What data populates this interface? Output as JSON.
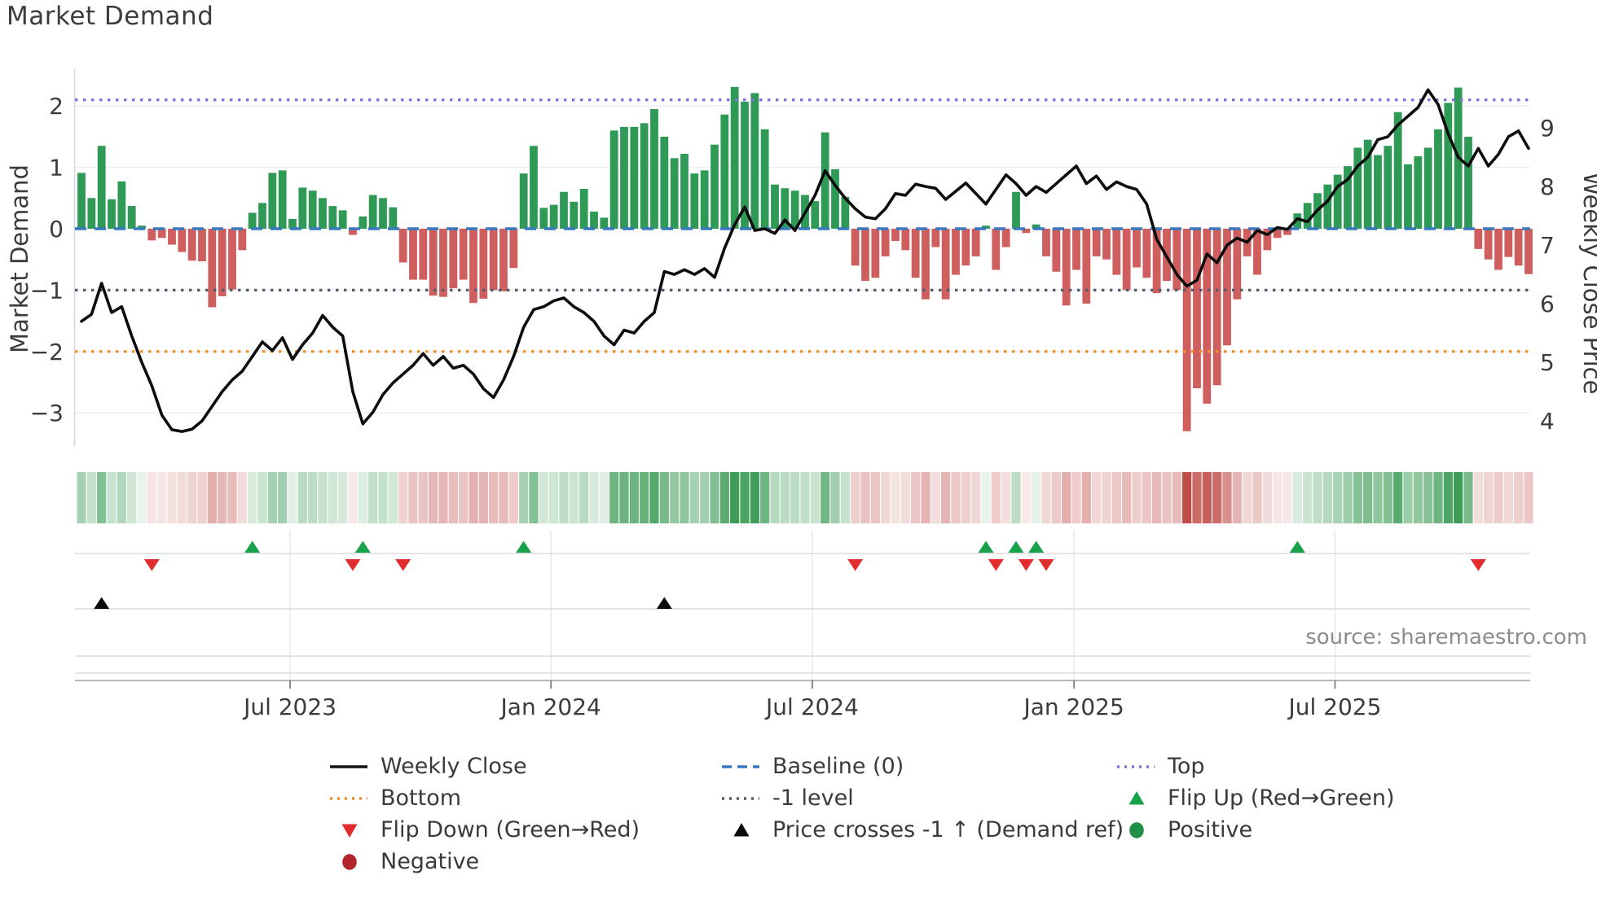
{
  "page": {
    "title": "Market Demand"
  },
  "source_note": "source: sharemaestro.com",
  "chart_data": {
    "type": "combo_bar_line",
    "title": "Market Demand",
    "x_axis": {
      "tick_labels": [
        "Jul 2023",
        "Jan 2024",
        "Jul 2024",
        "Jan 2025",
        "Jul 2025"
      ],
      "tick_week_indices": [
        20.76,
        46.72,
        72.73,
        98.77,
        124.74
      ],
      "weeks_total": 145
    },
    "left_axis": {
      "label": "Market Demand",
      "tick_values": [
        2,
        1,
        0,
        -1,
        -2,
        -3
      ],
      "tick_labels": [
        "2",
        "1",
        "0",
        "−1",
        "−2",
        "−3"
      ],
      "range": [
        -3.55,
        2.6
      ]
    },
    "right_axis": {
      "label": "Weekly Close Price",
      "tick_values": [
        9,
        8,
        7,
        6,
        5,
        4
      ],
      "tick_labels": [
        "9",
        "8",
        "7",
        "6",
        "5",
        "4"
      ],
      "range": [
        3.57,
        10.0
      ]
    },
    "reference_lines": [
      {
        "name": "Top",
        "value": 2.1,
        "color": "#7d74d9",
        "style": "dotted"
      },
      {
        "name": "Baseline (0)",
        "value": 0,
        "color": "#3679c0",
        "style": "dashed"
      },
      {
        "name": "-1 level",
        "value": -1,
        "color": "#565b68",
        "style": "dotted"
      },
      {
        "name": "Bottom",
        "value": -2,
        "color": "#f09127",
        "style": "dotted"
      }
    ],
    "series": {
      "demand_bars": {
        "name": "Market Demand",
        "positive_color": "#2e9a56",
        "negative_color": "#cf5f5f",
        "values": [
          0.91,
          0.5,
          1.35,
          0.48,
          0.77,
          0.37,
          0.05,
          -0.19,
          -0.15,
          -0.26,
          -0.38,
          -0.52,
          -0.53,
          -1.28,
          -1.1,
          -0.99,
          -0.35,
          0.26,
          0.42,
          0.91,
          0.95,
          0.16,
          0.67,
          0.62,
          0.5,
          0.37,
          0.3,
          -0.1,
          0.2,
          0.55,
          0.5,
          0.35,
          -0.55,
          -0.83,
          -0.83,
          -1.09,
          -1.11,
          -0.97,
          -0.83,
          -1.21,
          -1.14,
          -1.0,
          -1.02,
          -0.64,
          0.9,
          1.35,
          0.34,
          0.39,
          0.6,
          0.44,
          0.65,
          0.28,
          0.18,
          1.6,
          1.66,
          1.66,
          1.72,
          1.95,
          1.5,
          1.15,
          1.22,
          0.9,
          0.95,
          1.37,
          1.86,
          2.31,
          2.07,
          2.21,
          1.62,
          0.72,
          0.66,
          0.62,
          0.55,
          0.45,
          1.57,
          0.97,
          0.52,
          -0.6,
          -0.85,
          -0.8,
          -0.45,
          -0.2,
          -0.35,
          -0.8,
          -1.15,
          -0.3,
          -1.15,
          -0.75,
          -0.6,
          -0.45,
          0.05,
          -0.67,
          -0.3,
          0.6,
          -0.07,
          0.07,
          -0.45,
          -0.7,
          -1.25,
          -0.67,
          -1.22,
          -0.45,
          -0.5,
          -0.75,
          -1.0,
          -0.63,
          -0.8,
          -1.05,
          -0.85,
          -1.0,
          -3.3,
          -2.6,
          -2.85,
          -2.55,
          -1.9,
          -1.15,
          -0.45,
          -0.75,
          -0.35,
          -0.15,
          -0.1,
          0.25,
          0.42,
          0.58,
          0.72,
          0.88,
          1.02,
          1.32,
          1.45,
          1.2,
          1.35,
          1.9,
          1.05,
          1.18,
          1.32,
          1.62,
          2.05,
          2.3,
          1.5,
          -0.33,
          -0.5,
          -0.67,
          -0.46,
          -0.6,
          -0.74
        ]
      },
      "weekly_close": {
        "name": "Weekly Close",
        "color": "#0d0d0d",
        "axis": "right",
        "values": [
          5.7,
          5.82,
          6.35,
          5.85,
          5.95,
          5.45,
          5.0,
          4.6,
          4.1,
          3.85,
          3.82,
          3.86,
          4.0,
          4.25,
          4.5,
          4.7,
          4.85,
          5.1,
          5.35,
          5.2,
          5.42,
          5.05,
          5.3,
          5.5,
          5.8,
          5.6,
          5.45,
          4.5,
          3.95,
          4.15,
          4.45,
          4.65,
          4.8,
          4.95,
          5.15,
          4.95,
          5.1,
          4.9,
          4.95,
          4.8,
          4.55,
          4.4,
          4.7,
          5.1,
          5.6,
          5.9,
          5.95,
          6.05,
          6.1,
          5.95,
          5.85,
          5.7,
          5.45,
          5.3,
          5.55,
          5.5,
          5.7,
          5.85,
          6.55,
          6.5,
          6.58,
          6.5,
          6.6,
          6.45,
          6.95,
          7.35,
          7.65,
          7.25,
          7.28,
          7.2,
          7.43,
          7.25,
          7.55,
          7.85,
          8.27,
          8.02,
          7.8,
          7.62,
          7.48,
          7.45,
          7.62,
          7.88,
          7.85,
          8.04,
          8.0,
          7.97,
          7.78,
          7.92,
          8.06,
          7.88,
          7.7,
          7.95,
          8.2,
          8.05,
          7.85,
          8.0,
          7.9,
          8.05,
          8.2,
          8.35,
          8.05,
          8.18,
          7.95,
          8.08,
          8.0,
          7.95,
          7.7,
          7.1,
          6.8,
          6.5,
          6.3,
          6.4,
          6.85,
          6.7,
          7.0,
          7.12,
          7.05,
          7.25,
          7.18,
          7.3,
          7.27,
          7.45,
          7.4,
          7.6,
          7.75,
          8.0,
          8.12,
          8.35,
          8.5,
          8.8,
          8.85,
          9.05,
          9.2,
          9.35,
          9.65,
          9.4,
          8.9,
          8.5,
          8.35,
          8.65,
          8.35,
          8.55,
          8.85,
          8.95,
          8.65
        ]
      }
    },
    "heatmap": {
      "derived_from": "demand_bars",
      "positive_color": "#3e9c58",
      "negative_color": "#bf4d48"
    },
    "markers": {
      "flip_up": {
        "label": "Flip Up (Red→Green)",
        "color": "#18a24b",
        "week_indices": [
          17,
          28,
          44,
          90,
          93,
          95,
          121
        ]
      },
      "flip_down": {
        "label": "Flip Down (Green→Red)",
        "color": "#e12d2d",
        "week_indices": [
          7,
          27,
          32,
          77,
          91,
          94,
          96,
          139
        ]
      },
      "price_cross": {
        "label": "Price crosses -1 ↑ (Demand ref)",
        "color": "#0a0a0a",
        "week_indices": [
          2,
          58
        ]
      }
    }
  },
  "legend": {
    "columns": [
      {
        "items": [
          {
            "label": "Weekly Close",
            "symbol": "line",
            "color": "#111111"
          },
          {
            "label": "Bottom",
            "symbol": "dotted",
            "color": "#f09127"
          },
          {
            "label": "Flip Down (Green→Red)",
            "symbol": "triangle-down",
            "color": "#e12d2d"
          },
          {
            "label": "Negative",
            "symbol": "circle",
            "color": "#b2252d"
          }
        ]
      },
      {
        "items": [
          {
            "label": "Baseline (0)",
            "symbol": "dashed",
            "color": "#3679c0"
          },
          {
            "label": "-1 level",
            "symbol": "dotted",
            "color": "#565b68"
          },
          {
            "label": "Price crosses -1 ↑ (Demand ref)",
            "symbol": "triangle-up",
            "color": "#0a0a0a"
          }
        ]
      },
      {
        "items": [
          {
            "label": "Top",
            "symbol": "dotted",
            "color": "#7d74d9"
          },
          {
            "label": "Flip Up (Red→Green)",
            "symbol": "triangle-up",
            "color": "#18a24b"
          },
          {
            "label": "Positive",
            "symbol": "circle",
            "color": "#1f8f45"
          }
        ]
      }
    ]
  }
}
